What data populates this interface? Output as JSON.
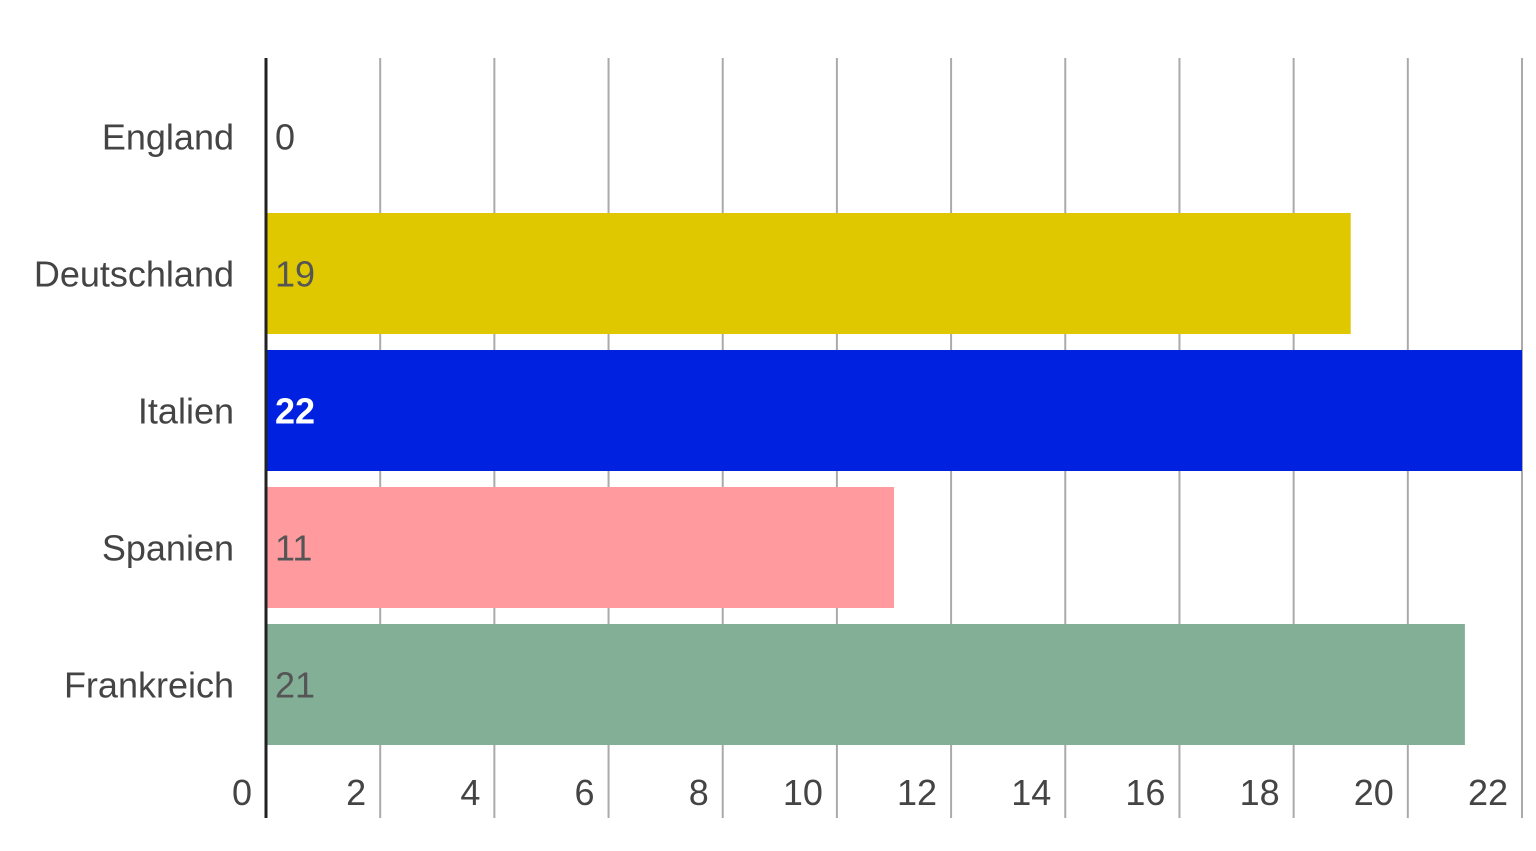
{
  "chart_data": {
    "type": "bar",
    "orientation": "horizontal",
    "categories": [
      "England",
      "Deutschland",
      "Italien",
      "Spanien",
      "Frankreich"
    ],
    "values": [
      0,
      19,
      22,
      11,
      21
    ],
    "data_labels": [
      "0",
      "19",
      "22",
      "11",
      "21"
    ],
    "colors": [
      "#e0c800",
      "#e0c800",
      "#0022e0",
      "#ff9a9e",
      "#83af97"
    ],
    "label_colors": [
      "#444444",
      "#555555",
      "#ffffff",
      "#555555",
      "#555555"
    ],
    "xlim": [
      0,
      22
    ],
    "xticks": [
      0,
      2,
      4,
      6,
      8,
      10,
      12,
      14,
      16,
      18,
      20,
      22
    ],
    "xtick_labels": [
      "0",
      "2",
      "4",
      "6",
      "8",
      "10",
      "12",
      "14",
      "16",
      "18",
      "20",
      "22"
    ],
    "grid": true,
    "legend": "none",
    "title": "",
    "xlabel": "",
    "ylabel": ""
  }
}
